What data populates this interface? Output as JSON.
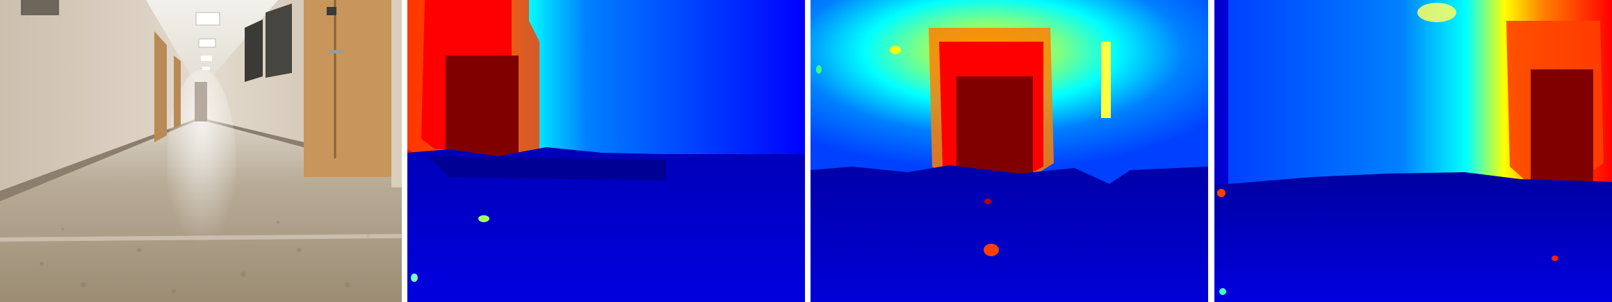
{
  "figure": {
    "panels": [
      {
        "kind": "photo",
        "icon": "hallway-photo-icon"
      },
      {
        "kind": "depth-map",
        "colormap": "jet",
        "icon": "depth-map-icon"
      },
      {
        "kind": "depth-map",
        "colormap": "jet",
        "icon": "depth-map-icon"
      },
      {
        "kind": "depth-map",
        "colormap": "jet",
        "icon": "depth-map-icon"
      }
    ],
    "colors": {
      "jet_dark_red": "#800000",
      "jet_red": "#ff0000",
      "jet_orange": "#ff8000",
      "jet_yellow": "#ffff00",
      "jet_cyan": "#00ffff",
      "jet_light_blue": "#0080ff",
      "jet_blue": "#0000ff",
      "jet_dark_blue": "#00008f",
      "wall": "#d8ccbd",
      "floor": "#a99a84",
      "door": "#c89a62",
      "ceiling": "#efede6"
    }
  }
}
